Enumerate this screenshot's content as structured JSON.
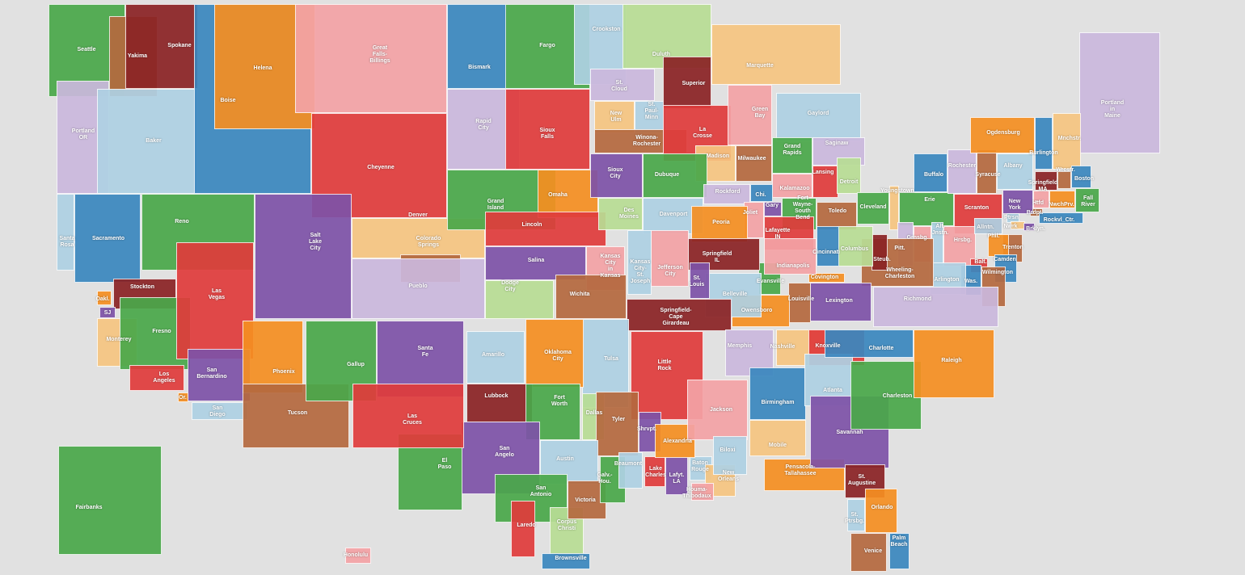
{
  "palette": {
    "green": "#4aa84a",
    "brown": "#b5693f",
    "darkred": "#8b2325",
    "blue": "#3b87bf",
    "lightblue": "#afd1e4",
    "purple": "#7e52a8",
    "lavender": "#cbb8dd",
    "orange": "#f58f22",
    "red": "#e03c3c",
    "pink": "#f4a3a6",
    "lightgreen": "#b8dd95",
    "peach": "#f6c581",
    "background": "#e1e1e1",
    "border": "#111111"
  },
  "regions": [
    {
      "label": "Seattle",
      "color": "green"
    },
    {
      "label": "Yakima",
      "color": "brown"
    },
    {
      "label": "Spokane",
      "color": "darkred"
    },
    {
      "label": "Portland\nOR",
      "color": "lavender"
    },
    {
      "label": "Baker",
      "color": "lightblue"
    },
    {
      "label": "Boise",
      "color": "blue"
    },
    {
      "label": "Helena",
      "color": "orange"
    },
    {
      "label": "Great\nFalls-\nBillings",
      "color": "pink"
    },
    {
      "label": "Bismark",
      "color": "blue"
    },
    {
      "label": "Fargo",
      "color": "green"
    },
    {
      "label": "Crookston",
      "color": "lightblue"
    },
    {
      "label": "Duluth",
      "color": "lightgreen"
    },
    {
      "label": "Marquette",
      "color": "peach"
    },
    {
      "label": "Portland\nin\nMaine",
      "color": "lavender"
    },
    {
      "label": "Rapid\nCity",
      "color": "lavender"
    },
    {
      "label": "Sioux\nFalls",
      "color": "red"
    },
    {
      "label": "St.\nCloud",
      "color": "lavender"
    },
    {
      "label": "New\nUlm",
      "color": "peach"
    },
    {
      "label": "St.\nPaul-\nMinn",
      "color": "lightblue"
    },
    {
      "label": "Winona-\nRochester",
      "color": "brown"
    },
    {
      "label": "Superior",
      "color": "darkred"
    },
    {
      "label": "La\nCrosse",
      "color": "red"
    },
    {
      "label": "Green\nBay",
      "color": "pink"
    },
    {
      "label": "Gaylord",
      "color": "lightblue"
    },
    {
      "label": "Madison",
      "color": "peach"
    },
    {
      "label": "Milwaukee",
      "color": "brown"
    },
    {
      "label": "Grand\nRapids",
      "color": "green"
    },
    {
      "label": "Saginaw",
      "color": "lavender"
    },
    {
      "label": "Lansing",
      "color": "red"
    },
    {
      "label": "Detroit",
      "color": "lightgreen"
    },
    {
      "label": "Kalamazoo",
      "color": "pink"
    },
    {
      "label": "Cheyenne",
      "color": "red"
    },
    {
      "label": "Denver",
      "color": "peach"
    },
    {
      "label": "Colorado\nSprings",
      "color": "brown"
    },
    {
      "label": "Pueblo",
      "color": "lavender"
    },
    {
      "label": "Grand\nIsland",
      "color": "green"
    },
    {
      "label": "Omaha",
      "color": "orange"
    },
    {
      "label": "Lincoln",
      "color": "red"
    },
    {
      "label": "Sioux\nCity",
      "color": "purple"
    },
    {
      "label": "Dubuque",
      "color": "green"
    },
    {
      "label": "Des\nMoines",
      "color": "lightgreen"
    },
    {
      "label": "Davenport",
      "color": "lightblue"
    },
    {
      "label": "Rockford",
      "color": "lavender"
    },
    {
      "label": "Chi.",
      "color": "blue"
    },
    {
      "label": "Gary",
      "color": "purple"
    },
    {
      "label": "Fort\nWayne-\nSouth\nBend",
      "color": "green"
    },
    {
      "label": "Lafayette\nIN",
      "color": "red"
    },
    {
      "label": "Joliet",
      "color": "pink"
    },
    {
      "label": "Peoria",
      "color": "orange"
    },
    {
      "label": "Toledo",
      "color": "brown"
    },
    {
      "label": "Cleveland",
      "color": "green"
    },
    {
      "label": "Youngstown",
      "color": "peach"
    },
    {
      "label": "Erie",
      "color": "green"
    },
    {
      "label": "Buffalo",
      "color": "blue"
    },
    {
      "label": "Rochester",
      "color": "lavender"
    },
    {
      "label": "Syracuse",
      "color": "brown"
    },
    {
      "label": "Albany",
      "color": "lightblue"
    },
    {
      "label": "Ogdensburg",
      "color": "orange"
    },
    {
      "label": "Burlington",
      "color": "blue"
    },
    {
      "label": "Mnchstr.",
      "color": "peach"
    },
    {
      "label": "Springfield\nMA",
      "color": "darkred"
    },
    {
      "label": "Wrcstr.",
      "color": "brown"
    },
    {
      "label": "Boston",
      "color": "blue"
    },
    {
      "label": "Fall\nRiver",
      "color": "green"
    },
    {
      "label": "Htfd",
      "color": "pink"
    },
    {
      "label": "NwchPrv.",
      "color": "orange"
    },
    {
      "label": "Brdpt.",
      "color": "brown"
    },
    {
      "label": "New\nYork",
      "color": "purple"
    },
    {
      "label": "Rockvl_Ctr.",
      "color": "blue"
    },
    {
      "label": "Ptrsn",
      "color": "lightblue"
    },
    {
      "label": "Nwrk",
      "color": "peach"
    },
    {
      "label": "Brklyn.",
      "color": "purple"
    },
    {
      "label": "Trenton",
      "color": "brown"
    },
    {
      "label": "Phil.",
      "color": "orange"
    },
    {
      "label": "Camden",
      "color": "blue"
    },
    {
      "label": "Scranton",
      "color": "red"
    },
    {
      "label": "Pitt.",
      "color": "lavender"
    },
    {
      "label": "Grnsbg.",
      "color": "pink"
    },
    {
      "label": "Alt.\nJnstn.",
      "color": "lightblue"
    },
    {
      "label": "Hrsbg.",
      "color": "pink"
    },
    {
      "label": "Allntn.",
      "color": "lightblue"
    },
    {
      "label": "Balt.",
      "color": "red"
    },
    {
      "label": "Was.",
      "color": "blue"
    },
    {
      "label": "Wilmington",
      "color": "brown"
    },
    {
      "label": "Arlington",
      "color": "lightblue"
    },
    {
      "label": "Wheeling-\nCharleston",
      "color": "brown"
    },
    {
      "label": "Steub.",
      "color": "darkred"
    },
    {
      "label": "Columbus",
      "color": "lightgreen"
    },
    {
      "label": "Cincinnati",
      "color": "blue"
    },
    {
      "label": "Richmond",
      "color": "lavender"
    },
    {
      "label": "Covington",
      "color": "orange"
    },
    {
      "label": "Lexington",
      "color": "purple"
    },
    {
      "label": "Louisville",
      "color": "brown"
    },
    {
      "label": "Owensboro",
      "color": "orange"
    },
    {
      "label": "Evansville",
      "color": "green"
    },
    {
      "label": "Indianapolis",
      "color": "pink"
    },
    {
      "label": "Springfield\nIL",
      "color": "darkred"
    },
    {
      "label": "Belleville",
      "color": "lightblue"
    },
    {
      "label": "St.\nLouis",
      "color": "purple"
    },
    {
      "label": "Jefferson\nCity",
      "color": "pink"
    },
    {
      "label": "Kansas\nCity-\nSt.\nJoseph",
      "color": "lightblue"
    },
    {
      "label": "Kansas\nCity\nin\nKansas",
      "color": "pink"
    },
    {
      "label": "Salina",
      "color": "purple"
    },
    {
      "label": "Dodge\nCity",
      "color": "lightgreen"
    },
    {
      "label": "Wichita",
      "color": "brown"
    },
    {
      "label": "Springfield-\nCape\nGirardeau",
      "color": "darkred"
    },
    {
      "label": "Little\nRock",
      "color": "red"
    },
    {
      "label": "Tulsa",
      "color": "lightblue"
    },
    {
      "label": "Oklahoma\nCity",
      "color": "orange"
    },
    {
      "label": "Amarillo",
      "color": "lightblue"
    },
    {
      "label": "Lubbock",
      "color": "darkred"
    },
    {
      "label": "Fort\nWorth",
      "color": "green"
    },
    {
      "label": "Dallas",
      "color": "lightgreen"
    },
    {
      "label": "Tyler",
      "color": "brown"
    },
    {
      "label": "San\nAngelo",
      "color": "purple"
    },
    {
      "label": "Austin",
      "color": "lightblue"
    },
    {
      "label": "El\nPaso",
      "color": "green"
    },
    {
      "label": "San\nAntonio",
      "color": "green"
    },
    {
      "label": "Laredo",
      "color": "red"
    },
    {
      "label": "Corpus\nChristi",
      "color": "lightgreen"
    },
    {
      "label": "Brownsville",
      "color": "blue"
    },
    {
      "label": "Victoria",
      "color": "brown"
    },
    {
      "label": "Galv.-\nHou.",
      "color": "green"
    },
    {
      "label": "Beaumont",
      "color": "lightblue"
    },
    {
      "label": "Lake\nCharles",
      "color": "red"
    },
    {
      "label": "Lafyt.\nLA",
      "color": "purple"
    },
    {
      "label": "Baton\nRouge",
      "color": "lightblue"
    },
    {
      "label": "New\nOrleans",
      "color": "peach"
    },
    {
      "label": "Houma-\nThibodaux",
      "color": "pink"
    },
    {
      "label": "Shrvpt.",
      "color": "purple"
    },
    {
      "label": "Alexandria",
      "color": "orange"
    },
    {
      "label": "Jackson",
      "color": "pink"
    },
    {
      "label": "Biloxi",
      "color": "lightblue"
    },
    {
      "label": "Memphis",
      "color": "lavender"
    },
    {
      "label": "Nashville",
      "color": "peach"
    },
    {
      "label": "Knoxville",
      "color": "red"
    },
    {
      "label": "Birmingham",
      "color": "blue"
    },
    {
      "label": "Mobile",
      "color": "peach"
    },
    {
      "label": "Pensacola-\nTallahassee",
      "color": "orange"
    },
    {
      "label": "Atlanta",
      "color": "lightblue"
    },
    {
      "label": "Savannah",
      "color": "purple"
    },
    {
      "label": "Charleston",
      "color": "green"
    },
    {
      "label": "Charlotte",
      "color": "blue"
    },
    {
      "label": "Raleigh",
      "color": "orange"
    },
    {
      "label": "St.\nAugustine",
      "color": "darkred"
    },
    {
      "label": "Orlando",
      "color": "orange"
    },
    {
      "label": "St.\nPtrsbg.",
      "color": "lightblue"
    },
    {
      "label": "Venice",
      "color": "brown"
    },
    {
      "label": "Palm\nBeach",
      "color": "blue"
    },
    {
      "label": "Reno",
      "color": "green"
    },
    {
      "label": "Sacramento",
      "color": "blue"
    },
    {
      "label": "Santa\nRosa",
      "color": "lightblue"
    },
    {
      "label": "Stockton",
      "color": "darkred"
    },
    {
      "label": "Oakl.",
      "color": "orange"
    },
    {
      "label": "SJ",
      "color": "purple"
    },
    {
      "label": "Monterey",
      "color": "peach"
    },
    {
      "label": "Fresno",
      "color": "green"
    },
    {
      "label": "Las\nVegas",
      "color": "red"
    },
    {
      "label": "Salt\nLake\nCity",
      "color": "purple"
    },
    {
      "label": "Los\nAngeles",
      "color": "red"
    },
    {
      "label": "San\nBernardino",
      "color": "purple"
    },
    {
      "label": "Or.",
      "color": "orange"
    },
    {
      "label": "San\nDiego",
      "color": "lightblue"
    },
    {
      "label": "Phoenix",
      "color": "orange"
    },
    {
      "label": "Tucson",
      "color": "brown"
    },
    {
      "label": "Gallup",
      "color": "green"
    },
    {
      "label": "Santa\nFe",
      "color": "purple"
    },
    {
      "label": "Las\nCruces",
      "color": "red"
    },
    {
      "label": "Fairbanks",
      "color": "green"
    },
    {
      "label": "Honolulu",
      "color": "pink"
    }
  ]
}
